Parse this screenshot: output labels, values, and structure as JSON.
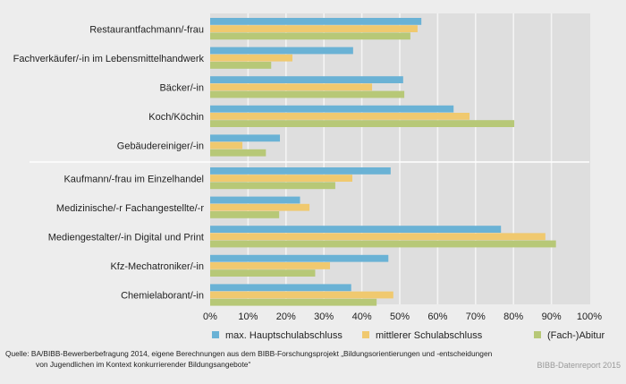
{
  "chart_data": {
    "type": "bar",
    "orientation": "horizontal",
    "title": "",
    "xlabel": "",
    "ylabel": "",
    "xlim": [
      0,
      100
    ],
    "x_ticks": [
      "0%",
      "10%",
      "20%",
      "30%",
      "40%",
      "50%",
      "60%",
      "70%",
      "80%",
      "90%",
      "100%"
    ],
    "x_tick_values": [
      0,
      10,
      20,
      30,
      40,
      50,
      60,
      70,
      80,
      90,
      100
    ],
    "grid": true,
    "legend_position": "bottom",
    "group_separator_after_index": 4,
    "categories": [
      "Restaurantfachmann/-frau",
      "Fachverkäufer/-in im Lebensmittelhandwerk",
      "Bäcker/-in",
      "Koch/Köchin",
      "Gebäudereiniger/-in",
      "Kaufmann/-frau im Einzelhandel",
      "Medizinische/-r Fachangestellte/-r",
      "Mediengestalter/-in Digital und Print",
      "Kfz-Mechatroniker/-in",
      "Chemielaborant/-in"
    ],
    "series": [
      {
        "name": "max. Hauptschulabschluss",
        "color": "#6ab2d5",
        "values": [
          55.7,
          37.7,
          50.9,
          64.2,
          18.4,
          47.6,
          23.7,
          76.7,
          47.0,
          37.2
        ]
      },
      {
        "name": "mittlerer Schulabschluss",
        "color": "#f0c96f",
        "values": [
          54.7,
          21.7,
          42.7,
          68.4,
          8.5,
          37.5,
          26.2,
          88.4,
          31.6,
          48.3
        ]
      },
      {
        "name": "(Fach-)Abitur",
        "color": "#b7c877",
        "values": [
          52.8,
          16.1,
          51.2,
          80.2,
          14.7,
          33.0,
          18.2,
          91.2,
          27.7,
          43.9
        ]
      }
    ]
  },
  "footer": {
    "source_line1": "Quelle: BA/BIBB-Bewerberbefragung 2014, eigene Berechnungen aus dem BIBB-Forschungsprojekt „Bildungsorientierungen und -entscheidungen",
    "source_line2": "von Jugendlichen im Kontext konkurrierender Bildungsangebote“",
    "credit": "BIBB-Datenreport 2015"
  }
}
